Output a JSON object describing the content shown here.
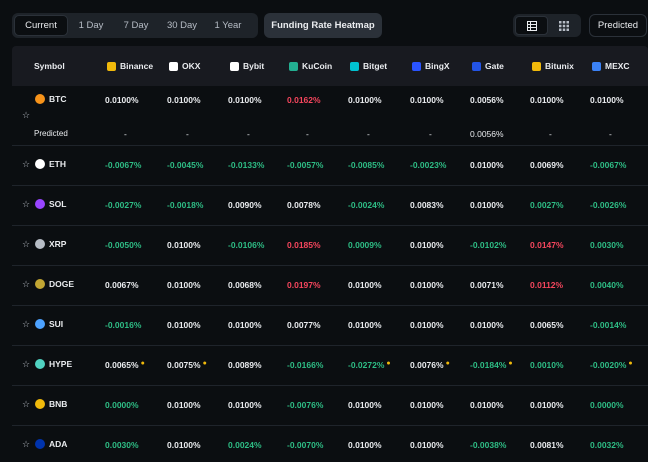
{
  "toolbar": {
    "periods": [
      "Current",
      "1 Day",
      "7 Day",
      "30 Day",
      "1 Year"
    ],
    "active_period": "Current",
    "heatmap_label": "Funding Rate Heatmap",
    "predicted_label": "Predicted",
    "colors": {
      "accent": "#f0b90b",
      "positive": "#2ebd85",
      "negative": "#f6465d"
    }
  },
  "table": {
    "symbol_header": "Symbol",
    "exchanges": [
      {
        "name": "Binance",
        "icon": "binance-icon",
        "color": "#f0b90b"
      },
      {
        "name": "OKX",
        "icon": "okx-icon",
        "color": "#ffffff"
      },
      {
        "name": "Bybit",
        "icon": "bybit-icon",
        "color": "#ffffff"
      },
      {
        "name": "KuCoin",
        "icon": "kucoin-icon",
        "color": "#23af91"
      },
      {
        "name": "Bitget",
        "icon": "bitget-icon",
        "color": "#00c2d1"
      },
      {
        "name": "BingX",
        "icon": "bingx-icon",
        "color": "#2a54ff"
      },
      {
        "name": "Gate",
        "icon": "gate-icon",
        "color": "#2354e6"
      },
      {
        "name": "Bitunix",
        "icon": "bitunix-icon",
        "color": "#f0b90b"
      },
      {
        "name": "MEXC",
        "icon": "mexc-icon",
        "color": "#3b82f6"
      }
    ],
    "predicted_row_label": "Predicted",
    "btc_predicted": [
      "-",
      "-",
      "-",
      "-",
      "-",
      "-",
      "0.0056%",
      "-",
      "-"
    ],
    "rows": [
      {
        "symbol": "BTC",
        "icon": "btc-icon",
        "color": "#f7931a",
        "rates": [
          "0.0100%",
          "0.0100%",
          "0.0100%",
          "0.0162%",
          "0.0100%",
          "0.0100%",
          "0.0056%",
          "0.0100%",
          "0.0100%"
        ],
        "tones": [
          "pos",
          "pos",
          "pos",
          "red",
          "pos",
          "pos",
          "pos",
          "pos",
          "pos"
        ]
      },
      {
        "symbol": "ETH",
        "icon": "eth-icon",
        "color": "#ffffff",
        "rates": [
          "-0.0067%",
          "-0.0045%",
          "-0.0133%",
          "-0.0057%",
          "-0.0085%",
          "-0.0023%",
          "0.0100%",
          "0.0069%",
          "-0.0067%"
        ],
        "tones": [
          "neg",
          "neg",
          "neg",
          "neg",
          "neg",
          "neg",
          "pos",
          "pos",
          "neg"
        ]
      },
      {
        "symbol": "SOL",
        "icon": "sol-icon",
        "color": "#9945ff",
        "rates": [
          "-0.0027%",
          "-0.0018%",
          "0.0090%",
          "0.0078%",
          "-0.0024%",
          "0.0083%",
          "0.0100%",
          "0.0027%",
          "-0.0026%"
        ],
        "tones": [
          "neg",
          "neg",
          "pos",
          "pos",
          "neg",
          "pos",
          "pos",
          "grn",
          "neg"
        ]
      },
      {
        "symbol": "XRP",
        "icon": "xrp-icon",
        "color": "#b7bdc6",
        "rates": [
          "-0.0050%",
          "0.0100%",
          "-0.0106%",
          "0.0185%",
          "0.0009%",
          "0.0100%",
          "-0.0102%",
          "0.0147%",
          "0.0030%"
        ],
        "tones": [
          "neg",
          "pos",
          "neg",
          "red",
          "grn",
          "pos",
          "neg",
          "red",
          "grn"
        ]
      },
      {
        "symbol": "DOGE",
        "icon": "doge-icon",
        "color": "#c2a633",
        "rates": [
          "0.0067%",
          "0.0100%",
          "0.0068%",
          "0.0197%",
          "0.0100%",
          "0.0100%",
          "0.0071%",
          "0.0112%",
          "0.0040%"
        ],
        "tones": [
          "pos",
          "pos",
          "pos",
          "red",
          "pos",
          "pos",
          "pos",
          "red",
          "grn"
        ]
      },
      {
        "symbol": "SUI",
        "icon": "sui-icon",
        "color": "#4da2ff",
        "rates": [
          "-0.0016%",
          "0.0100%",
          "0.0100%",
          "0.0077%",
          "0.0100%",
          "0.0100%",
          "0.0100%",
          "0.0065%",
          "-0.0014%"
        ],
        "tones": [
          "neg",
          "pos",
          "pos",
          "pos",
          "pos",
          "pos",
          "pos",
          "pos",
          "neg"
        ]
      },
      {
        "symbol": "HYPE",
        "icon": "hype-icon",
        "color": "#50d2c1",
        "rates": [
          "0.0065%",
          "0.0075%",
          "0.0089%",
          "-0.0166%",
          "-0.0272%",
          "0.0076%",
          "-0.0184%",
          "0.0010%",
          "-0.0020%"
        ],
        "tones": [
          "pos",
          "pos",
          "pos",
          "neg",
          "neg",
          "pos",
          "neg",
          "grn",
          "neg"
        ],
        "dots": [
          true,
          true,
          false,
          false,
          true,
          true,
          true,
          false,
          true
        ]
      },
      {
        "symbol": "BNB",
        "icon": "bnb-icon",
        "color": "#f0b90b",
        "rates": [
          "0.0000%",
          "0.0100%",
          "0.0100%",
          "-0.0076%",
          "0.0100%",
          "0.0100%",
          "0.0100%",
          "0.0100%",
          "0.0000%"
        ],
        "tones": [
          "grn",
          "pos",
          "pos",
          "neg",
          "pos",
          "pos",
          "pos",
          "pos",
          "grn"
        ]
      },
      {
        "symbol": "ADA",
        "icon": "ada-icon",
        "color": "#0033ad",
        "rates": [
          "0.0030%",
          "0.0100%",
          "0.0024%",
          "-0.0070%",
          "0.0100%",
          "0.0100%",
          "-0.0038%",
          "0.0081%",
          "0.0032%"
        ],
        "tones": [
          "grn",
          "pos",
          "grn",
          "neg",
          "pos",
          "pos",
          "neg",
          "pos",
          "grn"
        ]
      }
    ]
  }
}
